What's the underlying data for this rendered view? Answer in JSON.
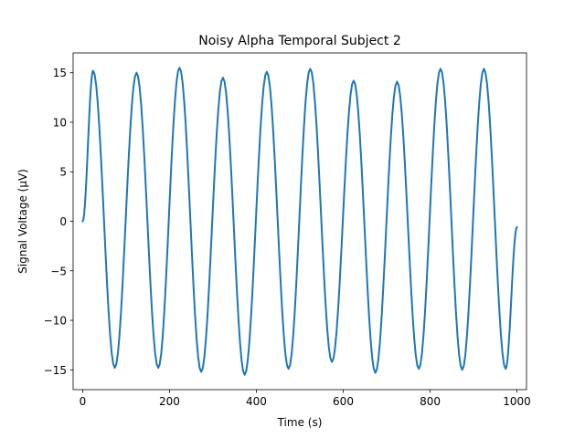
{
  "chart_data": {
    "type": "line",
    "title": "Noisy Alpha Temporal Subject 2",
    "xlabel": "Time (s)",
    "ylabel": "Signal Voltage (μV)",
    "xlim": [
      -22,
      1022
    ],
    "ylim": [
      -17,
      17
    ],
    "xticks": [
      0,
      200,
      400,
      600,
      800,
      1000
    ],
    "xtick_labels": [
      "0",
      "200",
      "400",
      "600",
      "800",
      "1000"
    ],
    "yticks": [
      -15,
      -10,
      -5,
      0,
      5,
      10,
      15
    ],
    "ytick_labels": [
      "−15",
      "−10",
      "−5",
      "0",
      "5",
      "10",
      "15"
    ],
    "grid": false,
    "series": [
      {
        "color": "#1f77b4",
        "x": [
          0,
          24,
          74,
          124,
          174,
          223,
          273,
          323,
          373,
          424,
          474,
          524,
          574,
          624,
          674,
          724,
          774,
          824,
          874,
          924,
          974,
          1000
        ],
        "y": [
          0,
          15.2,
          -14.8,
          15.0,
          -14.8,
          15.5,
          -15.2,
          14.5,
          -15.5,
          15.1,
          -14.9,
          15.4,
          -14.2,
          14.2,
          -15.3,
          14.1,
          -14.9,
          15.4,
          -15.0,
          15.4,
          -14.9,
          -0.6
        ]
      }
    ]
  }
}
